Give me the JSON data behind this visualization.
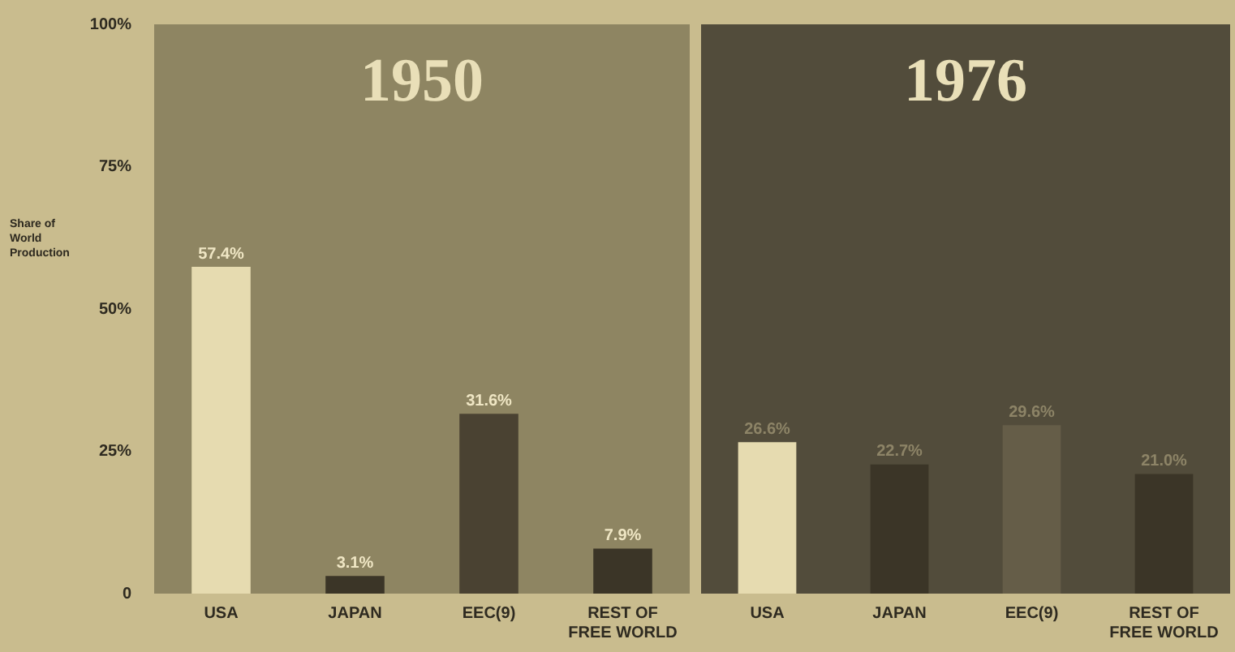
{
  "chart_data": [
    {
      "type": "bar",
      "title": "1950",
      "ylabel": "Share of World Production",
      "categories": [
        "USA",
        "JAPAN",
        "EEC(9)",
        "REST OF FREE WORLD"
      ],
      "values": [
        57.4,
        3.1,
        31.6,
        7.9
      ],
      "colors": [
        "#e6dbb0",
        "#3b3527",
        "#4a4232",
        "#3b3527"
      ],
      "value_labels": [
        "57.4%",
        "3.1%",
        "31.6%",
        "7.9%"
      ],
      "ylim": [
        0,
        100
      ],
      "yticks": [
        {
          "value": 0,
          "label": "0"
        },
        {
          "value": 25,
          "label": "25%"
        },
        {
          "value": 50,
          "label": "50%"
        },
        {
          "value": 75,
          "label": "75%"
        },
        {
          "value": 100,
          "label": "100%"
        }
      ],
      "legend": false,
      "grid": false
    },
    {
      "type": "bar",
      "title": "1976",
      "categories": [
        "USA",
        "JAPAN",
        "EEC(9)",
        "REST OF FREE WORLD"
      ],
      "values": [
        26.6,
        22.7,
        29.6,
        21.0
      ],
      "colors": [
        "#e6dbb0",
        "#3b3527",
        "#655d48",
        "#3b3527"
      ],
      "value_labels": [
        "26.6%",
        "22.7%",
        "29.6%",
        "21.0%"
      ],
      "ylim": [
        0,
        100
      ],
      "tick_labels": "x",
      "legend": false,
      "grid": false
    }
  ]
}
